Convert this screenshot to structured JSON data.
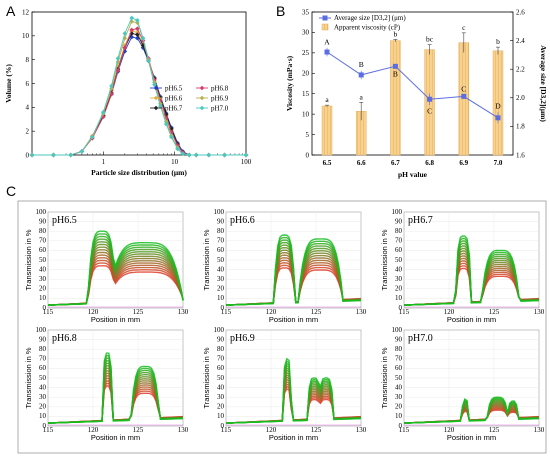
{
  "panels": {
    "a": "A",
    "b": "B",
    "c": "C"
  },
  "chart_data": [
    {
      "panel": "A",
      "type": "line",
      "xscale": "log",
      "xlabel": "Particle size distribution (μm)",
      "ylabel": "Volume (%)",
      "xlim": [
        0.1,
        100
      ],
      "ylim": [
        0,
        12
      ],
      "xticks": [
        1,
        10,
        100
      ],
      "yticks": [
        0,
        2,
        4,
        6,
        8,
        10,
        12
      ],
      "legend": "right",
      "x": [
        0.1,
        0.2,
        0.35,
        0.5,
        0.7,
        1.0,
        1.3,
        1.6,
        2.0,
        2.5,
        3.0,
        3.6,
        4.3,
        5.2,
        6.3,
        7.6,
        9.0,
        11,
        13,
        16,
        20,
        30,
        50,
        100
      ],
      "series": [
        {
          "name": "pH6.5",
          "color": "#1f3fd1",
          "marker": "diamond",
          "values": [
            0,
            0,
            0,
            0.3,
            1.5,
            3.3,
            5.1,
            7.0,
            8.7,
            9.9,
            9.8,
            9.0,
            7.9,
            6.5,
            4.9,
            3.5,
            2.3,
            1.0,
            0.3,
            0,
            0,
            0,
            0,
            0
          ]
        },
        {
          "name": "pH6.6",
          "color": "#e3b040",
          "marker": "diamond",
          "values": [
            0,
            0,
            0,
            0.3,
            1.6,
            3.5,
            5.4,
            7.4,
            9.2,
            10.4,
            10.3,
            9.3,
            8.0,
            6.4,
            4.8,
            3.3,
            2.1,
            0.9,
            0.2,
            0,
            0,
            0,
            0,
            0
          ]
        },
        {
          "name": "pH6.7",
          "color": "#222222",
          "marker": "diamond",
          "values": [
            0,
            0,
            0,
            0.3,
            1.5,
            3.3,
            5.2,
            7.2,
            9.0,
            10.2,
            10.1,
            9.2,
            7.9,
            6.4,
            4.8,
            3.4,
            2.2,
            0.9,
            0.2,
            0,
            0,
            0,
            0,
            0
          ]
        },
        {
          "name": "pH6.8",
          "color": "#d93a6a",
          "marker": "diamond",
          "values": [
            0,
            0,
            0,
            0.3,
            1.4,
            3.2,
            5.1,
            7.1,
            9.0,
            10.5,
            10.6,
            9.6,
            8.1,
            6.3,
            4.6,
            3.1,
            1.9,
            0.8,
            0.2,
            0,
            0,
            0,
            0,
            0
          ]
        },
        {
          "name": "pH6.9",
          "color": "#b8b050",
          "marker": "diamond",
          "values": [
            0,
            0,
            0,
            0.3,
            1.5,
            3.5,
            5.6,
            7.8,
            9.8,
            11.2,
            11.1,
            9.8,
            8.0,
            6.1,
            4.3,
            2.8,
            1.6,
            0.6,
            0.1,
            0,
            0,
            0,
            0,
            0
          ]
        },
        {
          "name": "pH7.0",
          "color": "#48c9c0",
          "marker": "diamond",
          "values": [
            0,
            0,
            0,
            0.3,
            1.5,
            3.6,
            5.8,
            8.1,
            10.2,
            11.5,
            11.3,
            9.8,
            7.9,
            5.9,
            4.1,
            2.6,
            1.5,
            0.5,
            0.1,
            0,
            0,
            0,
            0,
            0
          ]
        }
      ]
    },
    {
      "panel": "B",
      "type": "bar",
      "xlabel": "pH value",
      "ylabel": "Viscosity (mPa·s)",
      "y2label": "Average size [D3,2](μm)",
      "categories": [
        "6.5",
        "6.6",
        "6.7",
        "6.8",
        "6.9",
        "7.0"
      ],
      "ylim": [
        0,
        35
      ],
      "yticks": [
        0,
        5,
        10,
        15,
        20,
        25,
        30,
        35
      ],
      "y2lim": [
        1.6,
        2.6
      ],
      "y2ticks": [
        "1.6",
        "1.8",
        "2.0",
        "2.2",
        "2.4",
        "2.6"
      ],
      "legend": "top-left",
      "series": [
        {
          "name": "Average size [D3,2] (μm)",
          "type": "line",
          "axis": "right",
          "color": "#5b6ee1",
          "values": [
            2.32,
            2.16,
            2.22,
            1.99,
            2.01,
            1.86
          ],
          "errors": [
            0.03,
            0.03,
            0.01,
            0.04,
            0.01,
            0.04
          ],
          "labels": [
            "A",
            "B",
            "B",
            "C",
            "C",
            "D"
          ]
        },
        {
          "name": "Apparent viscosity (cP)",
          "type": "bar",
          "axis": "left",
          "color": "#f2c36b",
          "values": [
            12,
            10.7,
            28,
            25.8,
            27.5,
            25.5
          ],
          "errors": [
            0.2,
            2.2,
            0.3,
            1.2,
            2.4,
            0.9
          ],
          "labels": [
            "a",
            "a",
            "b",
            "bc",
            "c",
            "b"
          ]
        }
      ]
    },
    {
      "panel": "C",
      "type": "line",
      "xlabel": "Position in mm",
      "ylabel": "Transmission in %",
      "xlim": [
        115,
        130
      ],
      "ylim": [
        0,
        100
      ],
      "xticks": [
        115,
        120,
        125,
        130
      ],
      "yticks": [
        0,
        10,
        20,
        30,
        40,
        50,
        60,
        70,
        80,
        90,
        100
      ],
      "subplots": [
        {
          "title": "pH6.5",
          "peaks": [
            [
              121.0,
              80,
              1.6
            ],
            [
              125.8,
              68,
              4.2
            ]
          ]
        },
        {
          "title": "pH6.6",
          "peaks": [
            [
              121.5,
              76,
              1.2
            ],
            [
              125.5,
              72,
              2.5
            ]
          ]
        },
        {
          "title": "pH6.7",
          "peaks": [
            [
              121.6,
              75,
              0.9
            ],
            [
              125.7,
              60,
              2.1
            ]
          ]
        },
        {
          "title": "pH6.8",
          "peaks": [
            [
              121.6,
              76,
              0.6
            ],
            [
              125.8,
              62,
              1.6
            ]
          ]
        },
        {
          "title": "pH6.9",
          "peaks": [
            [
              121.8,
              70,
              0.5
            ],
            [
              124.8,
              50,
              0.8
            ],
            [
              126.1,
              50,
              0.9
            ]
          ]
        },
        {
          "title": "pH7.0",
          "peaks": [
            [
              121.8,
              28,
              0.4
            ],
            [
              125.4,
              30,
              1.2
            ],
            [
              127.1,
              26,
              0.6
            ]
          ]
        }
      ]
    }
  ]
}
